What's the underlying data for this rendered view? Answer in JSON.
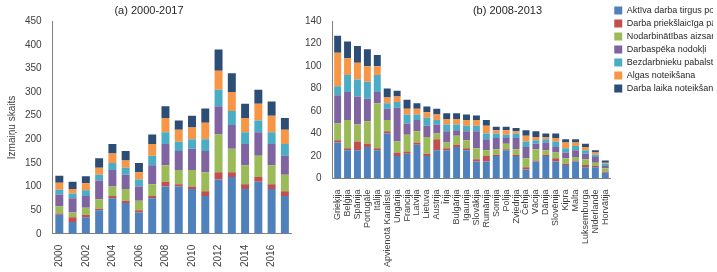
{
  "chart_data": [
    {
      "type": "bar",
      "title": "(a) 2000-2017",
      "y_label": "Izmaiņu skaits",
      "stacked": true,
      "grid": false,
      "categories": [
        "2000",
        null,
        "2002",
        null,
        "2004",
        null,
        "2006",
        null,
        "2008",
        null,
        "2010",
        null,
        "2012",
        null,
        "2014",
        null,
        "2016",
        null
      ],
      "ylim": [
        0,
        450
      ],
      "yticks": [
        0,
        50,
        100,
        150,
        200,
        250,
        300,
        350,
        400,
        450
      ],
      "series": [
        {
          "name": "Aktīva darba tirgus politika",
          "color": "#4f81bd",
          "values": [
            40,
            25,
            35,
            50,
            75,
            65,
            45,
            75,
            100,
            100,
            95,
            80,
            115,
            120,
            95,
            110,
            95,
            80
          ]
        },
        {
          "name": "Darba priekšlaicīga pārtraukšana",
          "color": "#c0504d",
          "values": [
            3,
            10,
            5,
            3,
            5,
            5,
            5,
            5,
            10,
            5,
            5,
            10,
            15,
            10,
            10,
            10,
            10,
            10
          ]
        },
        {
          "name": "Nodarbinātības aizsardzība",
          "color": "#9bbb59",
          "values": [
            15,
            10,
            15,
            20,
            20,
            25,
            20,
            25,
            35,
            30,
            35,
            40,
            80,
            50,
            40,
            45,
            40,
            35
          ]
        },
        {
          "name": "Darbaspēka nodokļi",
          "color": "#8064a2",
          "values": [
            25,
            30,
            25,
            40,
            35,
            30,
            30,
            40,
            45,
            40,
            45,
            45,
            60,
            50,
            45,
            50,
            45,
            40
          ]
        },
        {
          "name": "Bezdarbnieku pabalsti",
          "color": "#4bacc6",
          "values": [
            10,
            10,
            12,
            12,
            15,
            15,
            15,
            20,
            25,
            20,
            20,
            25,
            35,
            30,
            25,
            25,
            25,
            25
          ]
        },
        {
          "name": "Algas noteikšana",
          "color": "#f79646",
          "values": [
            15,
            10,
            15,
            15,
            20,
            15,
            15,
            25,
            30,
            25,
            25,
            35,
            40,
            40,
            30,
            35,
            35,
            30
          ]
        },
        {
          "name": "Darba laika noteikšana",
          "color": "#2c4d75",
          "values": [
            15,
            15,
            15,
            20,
            20,
            20,
            20,
            20,
            25,
            20,
            25,
            30,
            45,
            40,
            30,
            30,
            30,
            25
          ]
        }
      ]
    },
    {
      "type": "bar",
      "title": "(b) 2008-2013",
      "stacked": true,
      "grid": false,
      "legend": "right",
      "categories": [
        "Grieķija",
        "Beļģija",
        "Spānija",
        "Portugāle",
        "Itālija",
        "Apvienotā Karaliste",
        "Ungārija",
        "Francija",
        "Latvija",
        "Lietuva",
        "Austrija",
        "Īrija",
        "Bulgārija",
        "Igaunija",
        "Slovākija",
        "Rumānija",
        "Somija",
        "Polija",
        "Zviedrija",
        "Čehija",
        "Vācija",
        "Dānija",
        "Slovēnija",
        "Kipra",
        "Malta",
        "Luksemburga",
        "Nīderlande",
        "Horvātija"
      ],
      "ylim": [
        0,
        140
      ],
      "yticks": [
        0,
        20,
        40,
        60,
        80,
        100,
        120,
        140
      ],
      "series": [
        {
          "name": "Aktīva darba tirgus politika",
          "color": "#4f81bd",
          "values": [
            32,
            25,
            25,
            28,
            25,
            40,
            20,
            22,
            30,
            20,
            25,
            25,
            28,
            25,
            15,
            15,
            20,
            25,
            20,
            8,
            15,
            20,
            15,
            12,
            15,
            10,
            10,
            5
          ]
        },
        {
          "name": "Darba priekšlaicīga pārtraukšana",
          "color": "#c0504d",
          "values": [
            2,
            2,
            8,
            3,
            2,
            2,
            3,
            2,
            2,
            2,
            10,
            2,
            2,
            2,
            2,
            5,
            1,
            1,
            1,
            2,
            1,
            1,
            3,
            1,
            1,
            2,
            1,
            1
          ]
        },
        {
          "name": "Nodarbinātības aizsardzība",
          "color": "#9bbb59",
          "values": [
            15,
            25,
            15,
            20,
            40,
            10,
            10,
            15,
            10,
            15,
            5,
            5,
            8,
            7,
            10,
            5,
            5,
            5,
            5,
            8,
            10,
            4,
            5,
            5,
            3,
            5,
            3,
            3
          ]
        },
        {
          "name": "Darbaspēka nodokļi",
          "color": "#8064a2",
          "values": [
            25,
            25,
            25,
            20,
            10,
            10,
            30,
            10,
            10,
            10,
            8,
            10,
            5,
            8,
            15,
            10,
            10,
            5,
            10,
            10,
            5,
            7,
            5,
            5,
            6,
            5,
            5,
            2
          ]
        },
        {
          "name": "Bezdarbnieku pabalsti",
          "color": "#4bacc6",
          "values": [
            8,
            15,
            15,
            15,
            15,
            5,
            5,
            8,
            5,
            7,
            4,
            6,
            5,
            5,
            5,
            5,
            4,
            3,
            4,
            5,
            3,
            3,
            5,
            4,
            4,
            3,
            2,
            2
          ]
        },
        {
          "name": "Algas noteikšana",
          "color": "#f79646",
          "values": [
            30,
            15,
            15,
            14,
            8,
            5,
            5,
            5,
            5,
            5,
            5,
            5,
            5,
            5,
            5,
            7,
            3,
            4,
            2,
            5,
            3,
            2,
            3,
            5,
            3,
            3,
            2,
            1
          ]
        },
        {
          "name": "Darba laika noteikšana",
          "color": "#2c4d75",
          "values": [
            15,
            15,
            15,
            15,
            10,
            8,
            5,
            8,
            5,
            5,
            5,
            5,
            5,
            5,
            4,
            5,
            3,
            3,
            3,
            5,
            5,
            3,
            4,
            3,
            3,
            3,
            2,
            2
          ]
        }
      ]
    }
  ]
}
